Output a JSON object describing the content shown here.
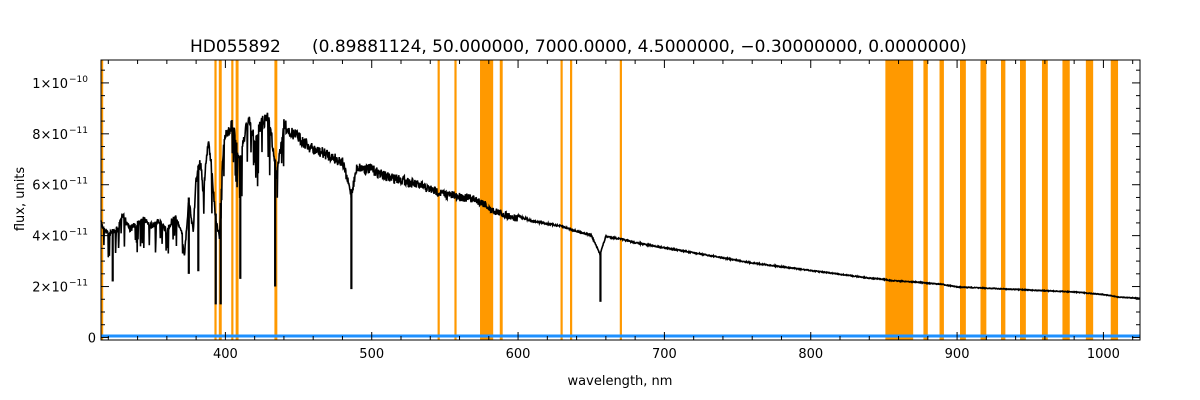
{
  "chart_data": {
    "type": "line",
    "title": "HD055892",
    "subtitle": "(0.89881124, 50.000000, 7000.0000, 4.5000000, −0.30000000, 0.0000000)",
    "xlabel": "wavelength, nm",
    "ylabel": "flux, units",
    "xlim": [
      315,
      1025
    ],
    "ylim": [
      -1e-12,
      1.09e-10
    ],
    "grid": false,
    "legend": "none",
    "x_ticks": [
      {
        "value": 400,
        "label": "400"
      },
      {
        "value": 500,
        "label": "500"
      },
      {
        "value": 600,
        "label": "600"
      },
      {
        "value": 700,
        "label": "700"
      },
      {
        "value": 800,
        "label": "800"
      },
      {
        "value": 900,
        "label": "900"
      },
      {
        "value": 1000,
        "label": "1000"
      }
    ],
    "y_ticks": [
      {
        "value": 0,
        "label": "0",
        "exp": ""
      },
      {
        "value": 2e-11,
        "label": "2×10",
        "exp": "−11"
      },
      {
        "value": 4e-11,
        "label": "4×10",
        "exp": "−11"
      },
      {
        "value": 6e-11,
        "label": "6×10",
        "exp": "−11"
      },
      {
        "value": 8e-11,
        "label": "8×10",
        "exp": "−11"
      },
      {
        "value": 1e-10,
        "label": "1×10",
        "exp": "−10"
      }
    ],
    "colors": {
      "spectrum": "#000000",
      "error": "#1e90ff",
      "masks": "#ff9900"
    },
    "masked_regions": [
      [
        315.0,
        316.5
      ],
      [
        392.5,
        394.0
      ],
      [
        395.5,
        397.5
      ],
      [
        404.0,
        405.5
      ],
      [
        407.0,
        409.0
      ],
      [
        433.5,
        435.5
      ],
      [
        545.0,
        546.5
      ],
      [
        556.5,
        558.0
      ],
      [
        574.0,
        583.0
      ],
      [
        587.5,
        589.5
      ],
      [
        629.0,
        630.5
      ],
      [
        635.5,
        637.0
      ],
      [
        669.5,
        671.0
      ],
      [
        851.0,
        870.0
      ],
      [
        877.0,
        880.0
      ],
      [
        888.0,
        891.0
      ],
      [
        902.0,
        906.0
      ],
      [
        916.0,
        920.0
      ],
      [
        930.0,
        933.0
      ],
      [
        943.0,
        947.0
      ],
      [
        958.0,
        962.0
      ],
      [
        972.0,
        977.0
      ],
      [
        988.0,
        993.0
      ],
      [
        1005.0,
        1010.0
      ]
    ],
    "spectrum_series": {
      "name": "",
      "x": [
        315,
        320,
        325,
        330,
        335,
        340,
        345,
        350,
        355,
        360,
        365,
        370,
        372,
        375,
        378,
        380,
        383,
        385,
        388,
        390,
        393,
        396,
        398,
        400,
        405,
        410,
        415,
        420,
        425,
        430,
        435,
        440,
        445,
        450,
        460,
        470,
        480,
        486,
        490,
        500,
        510,
        520,
        530,
        540,
        550,
        560,
        570,
        578,
        580,
        590,
        600,
        610,
        620,
        630,
        640,
        650,
        656,
        660,
        670,
        680,
        700,
        720,
        740,
        760,
        780,
        800,
        820,
        840,
        850,
        855,
        870,
        880,
        890,
        900,
        920,
        940,
        960,
        980,
        1000,
        1010,
        1025
      ],
      "y": [
        4.6e-11,
        4.2e-11,
        4.3e-11,
        4.9e-11,
        4.4e-11,
        4.6e-11,
        4.8e-11,
        4.5e-11,
        4.7e-11,
        4.3e-11,
        4.9e-11,
        4.4e-11,
        3.3e-11,
        5.5e-11,
        4.3e-11,
        6.4e-11,
        7.1e-11,
        5.8e-11,
        7.9e-11,
        7.2e-11,
        5e-11,
        4e-11,
        7.2e-11,
        8.2e-11,
        8.6e-11,
        7e-11,
        8.9e-11,
        8e-11,
        8.7e-11,
        8.9e-11,
        6.5e-11,
        8.6e-11,
        8.3e-11,
        8.1e-11,
        7.6e-11,
        7.4e-11,
        7.1e-11,
        5.8e-11,
        6.9e-11,
        6.8e-11,
        6.5e-11,
        6.4e-11,
        6.2e-11,
        6e-11,
        5.8e-11,
        5.7e-11,
        5.6e-11,
        5.4e-11,
        5.2e-11,
        5e-11,
        4.8e-11,
        4.6e-11,
        4.5e-11,
        4.4e-11,
        4.2e-11,
        4.05e-11,
        3.3e-11,
        4e-11,
        3.9e-11,
        3.75e-11,
        3.55e-11,
        3.35e-11,
        3.15e-11,
        2.95e-11,
        2.8e-11,
        2.65e-11,
        2.5e-11,
        2.35e-11,
        2.3e-11,
        2.25e-11,
        2.2e-11,
        2.15e-11,
        2.1e-11,
        2e-11,
        1.95e-11,
        1.9e-11,
        1.85e-11,
        1.8e-11,
        1.7e-11,
        1.6e-11,
        1.55e-11
      ]
    },
    "absorption_lines": [
      {
        "x": 393.4,
        "y": 1.3e-11
      },
      {
        "x": 396.8,
        "y": 1.3e-11
      },
      {
        "x": 410.2,
        "y": 2.3e-11
      },
      {
        "x": 434.0,
        "y": 2e-11
      },
      {
        "x": 486.1,
        "y": 1.9e-11
      },
      {
        "x": 656.3,
        "y": 1.4e-11
      },
      {
        "x": 381.5,
        "y": 2.6e-11
      },
      {
        "x": 375.0,
        "y": 2.5e-11
      },
      {
        "x": 323.0,
        "y": 2.2e-11
      }
    ],
    "error_series": {
      "name": "",
      "x": [
        315,
        1025
      ],
      "y": [
        2e-13,
        2e-13
      ]
    }
  }
}
